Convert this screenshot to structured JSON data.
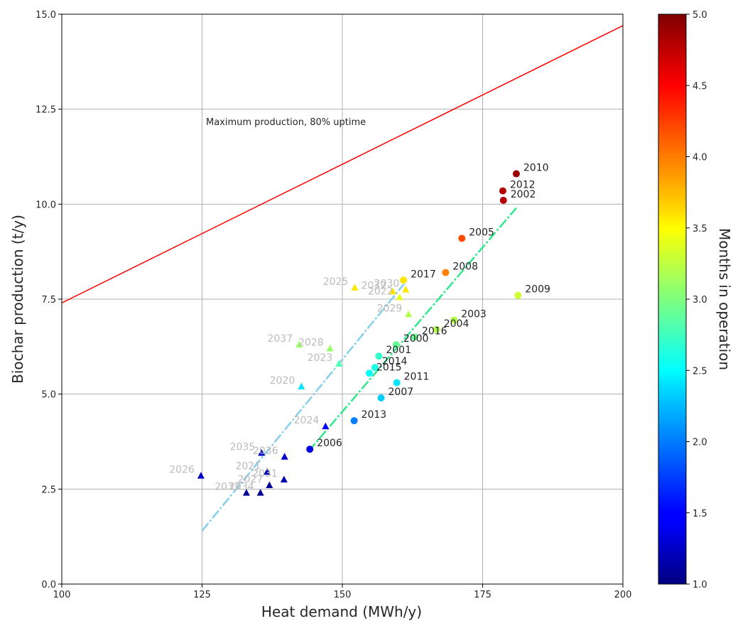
{
  "chart_data": {
    "type": "scatter",
    "title": "",
    "xlabel": "Heat demand (MWh/y)",
    "ylabel": "Biochar production (t/y)",
    "xlim": [
      100,
      200
    ],
    "ylim": [
      0,
      15
    ],
    "xticks": [
      100,
      125,
      150,
      175,
      200
    ],
    "yticks": [
      0.0,
      2.5,
      5.0,
      7.5,
      10.0,
      12.5,
      15.0
    ],
    "xtick_labels": [
      "100",
      "125",
      "150",
      "175",
      "200"
    ],
    "ytick_labels": [
      "0.0",
      "2.5",
      "5.0",
      "7.5",
      "10.0",
      "12.5",
      "15.0"
    ],
    "grid": true,
    "colorbar": {
      "label": "Months in operation",
      "range": [
        1.0,
        5.0
      ],
      "colormap": "jet",
      "ticks": [
        1.0,
        1.5,
        2.0,
        2.5,
        3.0,
        3.5,
        4.0,
        4.5,
        5.0
      ],
      "tick_labels": [
        "1.0",
        "1.5",
        "2.0",
        "2.5",
        "3.0",
        "3.5",
        "4.0",
        "4.5",
        "5.0"
      ]
    },
    "annotation": "Maximum production, 80% uptime",
    "max_line": {
      "color": "#ff0000",
      "points": [
        [
          100,
          7.4
        ],
        [
          200,
          14.7
        ]
      ]
    },
    "trend_lines": [
      {
        "color": "#87ceeb",
        "points": [
          [
            125,
            1.4
          ],
          [
            161,
            7.9
          ]
        ]
      },
      {
        "color": "#2ee88a",
        "points": [
          [
            144,
            3.5
          ],
          [
            181,
            9.9
          ]
        ]
      }
    ],
    "observed": [
      {
        "year": "2000",
        "x": 159.6,
        "y": 6.3,
        "months": 2.9
      },
      {
        "year": "2001",
        "x": 156.5,
        "y": 6.0,
        "months": 2.7
      },
      {
        "year": "2002",
        "x": 178.7,
        "y": 10.1,
        "months": 4.8
      },
      {
        "year": "2003",
        "x": 169.9,
        "y": 6.95,
        "months": 3.2
      },
      {
        "year": "2004",
        "x": 166.8,
        "y": 6.7,
        "months": 3.2
      },
      {
        "year": "2005",
        "x": 171.3,
        "y": 9.1,
        "months": 4.2
      },
      {
        "year": "2006",
        "x": 144.2,
        "y": 3.55,
        "months": 1.4
      },
      {
        "year": "2007",
        "x": 156.9,
        "y": 4.9,
        "months": 2.3
      },
      {
        "year": "2008",
        "x": 168.4,
        "y": 8.2,
        "months": 4.0
      },
      {
        "year": "2009",
        "x": 181.3,
        "y": 7.6,
        "months": 3.3
      },
      {
        "year": "2010",
        "x": 181.0,
        "y": 10.8,
        "months": 4.9
      },
      {
        "year": "2011",
        "x": 159.7,
        "y": 5.3,
        "months": 2.4
      },
      {
        "year": "2012",
        "x": 178.6,
        "y": 10.35,
        "months": 4.8
      },
      {
        "year": "2013",
        "x": 152.1,
        "y": 4.3,
        "months": 2.0
      },
      {
        "year": "2014",
        "x": 155.8,
        "y": 5.7,
        "months": 2.6
      },
      {
        "year": "2015",
        "x": 154.8,
        "y": 5.55,
        "months": 2.5
      },
      {
        "year": "2016",
        "x": 162.9,
        "y": 6.5,
        "months": 2.9
      },
      {
        "year": "2017",
        "x": 160.9,
        "y": 8.0,
        "months": 3.6
      }
    ],
    "projected": [
      {
        "year": "2020",
        "x": 142.7,
        "y": 5.2,
        "months": 2.4
      },
      {
        "year": "2021",
        "x": 136.6,
        "y": 2.95,
        "months": 1.2
      },
      {
        "year": "2022",
        "x": 160.2,
        "y": 7.55,
        "months": 3.4
      },
      {
        "year": "2023",
        "x": 149.4,
        "y": 5.8,
        "months": 2.8
      },
      {
        "year": "2024",
        "x": 147.0,
        "y": 4.15,
        "months": 1.5
      },
      {
        "year": "2025",
        "x": 152.2,
        "y": 7.8,
        "months": 3.6
      },
      {
        "year": "2026",
        "x": 124.8,
        "y": 2.85,
        "months": 1.3
      },
      {
        "year": "2027",
        "x": 137.0,
        "y": 2.6,
        "months": 1.1
      },
      {
        "year": "2028",
        "x": 147.8,
        "y": 6.2,
        "months": 3.1
      },
      {
        "year": "2029",
        "x": 161.8,
        "y": 7.1,
        "months": 3.2
      },
      {
        "year": "2030",
        "x": 161.3,
        "y": 7.75,
        "months": 3.6
      },
      {
        "year": "2031",
        "x": 139.6,
        "y": 2.75,
        "months": 1.2
      },
      {
        "year": "2032",
        "x": 159.0,
        "y": 7.7,
        "months": 3.6
      },
      {
        "year": "2033",
        "x": 132.9,
        "y": 2.4,
        "months": 1.1
      },
      {
        "year": "2034",
        "x": 135.4,
        "y": 2.4,
        "months": 1.1
      },
      {
        "year": "2035",
        "x": 135.6,
        "y": 3.45,
        "months": 1.3
      },
      {
        "year": "2036",
        "x": 139.7,
        "y": 3.35,
        "months": 1.3
      },
      {
        "year": "2037",
        "x": 142.3,
        "y": 6.3,
        "months": 3.1
      }
    ]
  }
}
